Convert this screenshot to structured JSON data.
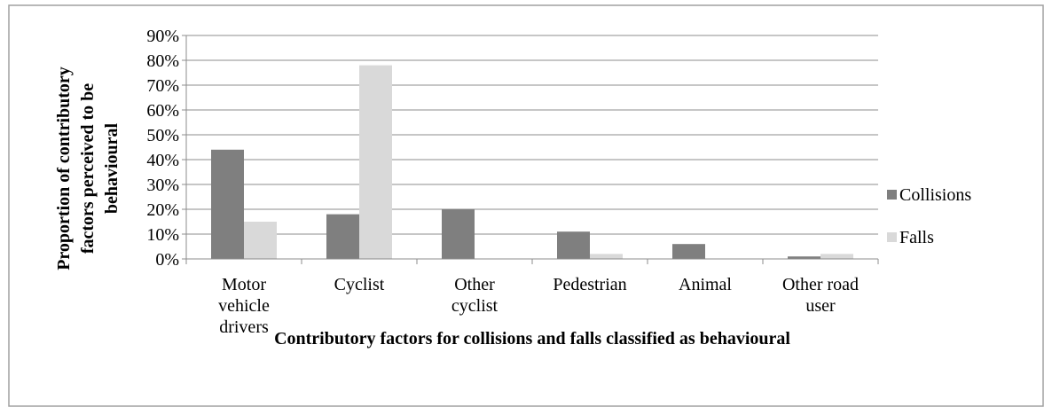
{
  "chart_data": {
    "type": "bar",
    "x_label": "Contributory factors for collisions and falls classified as behavioural",
    "y_label": "Proportion of contributory factors perceived to be behavioural",
    "categories": [
      "Motor vehicle drivers",
      "Cyclist",
      "Other cyclist",
      "Pedestrian",
      "Animal",
      "Other road user"
    ],
    "series": [
      {
        "name": "Collisions",
        "color": "#7f7f7f",
        "values": [
          44,
          18,
          20,
          11,
          6,
          1
        ]
      },
      {
        "name": "Falls",
        "color": "#d9d9d9",
        "values": [
          15,
          78,
          0,
          2,
          0,
          2
        ]
      }
    ],
    "ylim": [
      0,
      90
    ],
    "yticks": [
      {
        "value": 0,
        "label": "0%"
      },
      {
        "value": 10,
        "label": "10%"
      },
      {
        "value": 20,
        "label": "20%"
      },
      {
        "value": 30,
        "label": "30%"
      },
      {
        "value": 40,
        "label": "40%"
      },
      {
        "value": 50,
        "label": "50%"
      },
      {
        "value": 60,
        "label": "60%"
      },
      {
        "value": 70,
        "label": "70%"
      },
      {
        "value": 80,
        "label": "80%"
      },
      {
        "value": 90,
        "label": "90%"
      }
    ],
    "grid": true,
    "legend": "right"
  }
}
